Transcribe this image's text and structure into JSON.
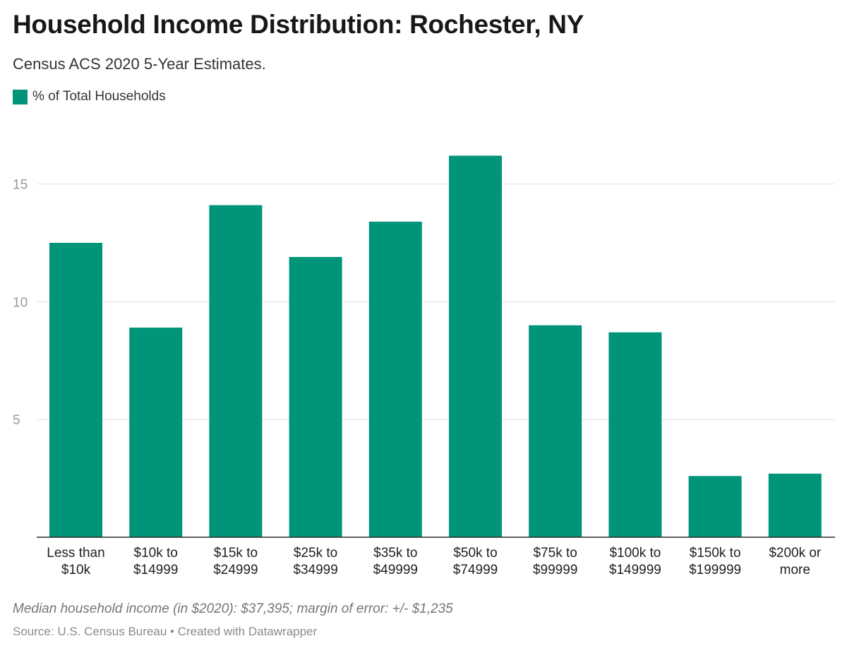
{
  "header": {
    "title": "Household Income Distribution: Rochester, NY",
    "subtitle": "Census ACS 2020 5-Year Estimates."
  },
  "legend": {
    "label": "% of Total Households"
  },
  "footer": {
    "note": "Median household income (in $2020): $37,395; margin of error: +/- $1,235",
    "source_label": "Source: ",
    "source": "U.S. Census Bureau",
    "separator": " • ",
    "credit": "Created with Datawrapper"
  },
  "colors": {
    "bar": "#009479",
    "grid": "#e3e3e3",
    "baseline": "#2b2b2b",
    "tick_label": "#9a9a9a",
    "category_label": "#222222"
  },
  "chart_data": {
    "type": "bar",
    "title": "Household Income Distribution: Rochester, NY",
    "subtitle": "Census ACS 2020 5-Year Estimates.",
    "xlabel": "",
    "ylabel": "",
    "categories": [
      [
        "Less than",
        "$10k"
      ],
      [
        "$10k to",
        "$14999"
      ],
      [
        "$15k to",
        "$24999"
      ],
      [
        "$25k to",
        "$34999"
      ],
      [
        "$35k to",
        "$49999"
      ],
      [
        "$50k to",
        "$74999"
      ],
      [
        "$75k to",
        "$99999"
      ],
      [
        "$100k to",
        "$149999"
      ],
      [
        "$150k to",
        "$199999"
      ],
      [
        "$200k or",
        "more"
      ]
    ],
    "series": [
      {
        "name": "% of Total Households",
        "values": [
          12.5,
          8.9,
          14.1,
          11.9,
          13.4,
          16.2,
          9.0,
          8.7,
          2.6,
          2.7
        ]
      }
    ],
    "ylim": [
      0,
      16.2
    ],
    "yticks": [
      5,
      10,
      15
    ],
    "grid": true,
    "legend_position": "top-left"
  }
}
